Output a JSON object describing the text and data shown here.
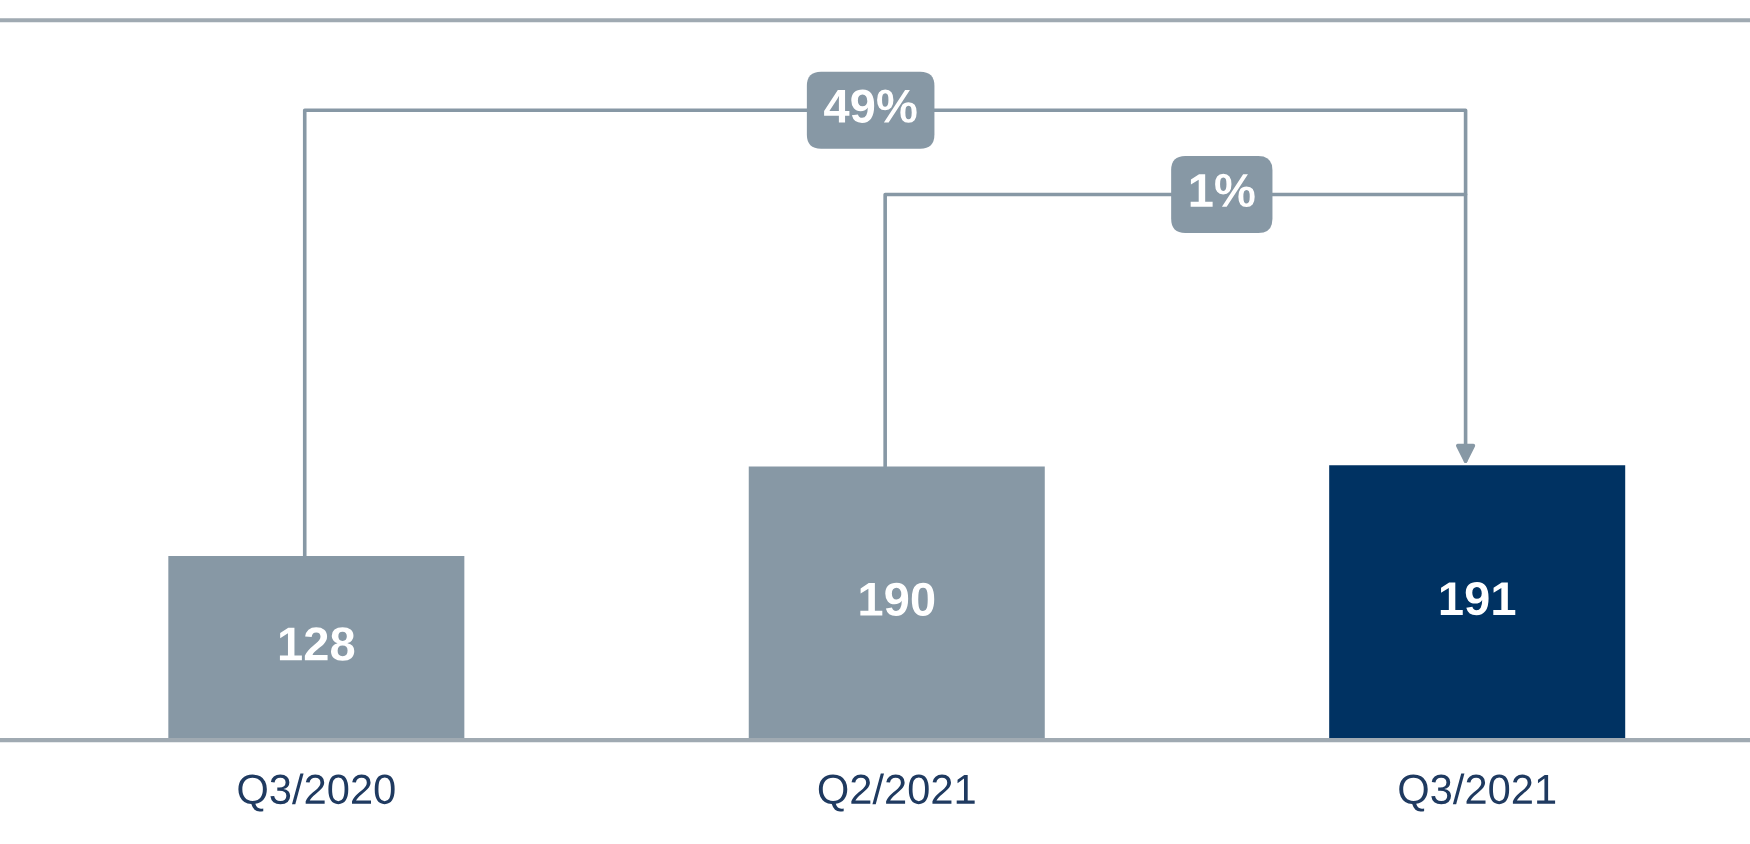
{
  "chart_data": {
    "type": "bar",
    "categories": [
      "Q3/2020",
      "Q2/2021",
      "Q3/2021"
    ],
    "values": [
      128,
      190,
      191
    ],
    "colors": [
      "#8798a5",
      "#8798a5",
      "#003262"
    ],
    "ylim": [
      0,
      500
    ],
    "data_labels": true,
    "grid": false,
    "legend": false,
    "annotations": [
      "49%",
      "1%"
    ]
  }
}
